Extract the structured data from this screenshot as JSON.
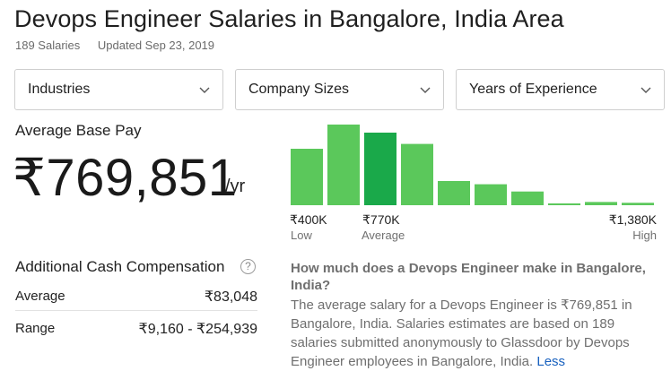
{
  "page": {
    "title": "Devops Engineer Salaries in Bangalore, India Area",
    "salary_count": "189 Salaries",
    "updated": "Updated Sep 23, 2019"
  },
  "filters": [
    {
      "label": "Industries",
      "icon": "chevron-down-icon"
    },
    {
      "label": "Company Sizes",
      "icon": "chevron-down-icon"
    },
    {
      "label": "Years of Experience",
      "icon": "chevron-down-icon"
    }
  ],
  "base_pay": {
    "label": "Average Base Pay",
    "value": "₹769,851",
    "unit": "/yr"
  },
  "histogram": {
    "colors": {
      "bar": "#5bc85b",
      "highlight": "#1aa94a"
    },
    "relative_heights": [
      0.7,
      1.0,
      0.9,
      0.76,
      0.3,
      0.26,
      0.17,
      0.02,
      0.04,
      0.03
    ],
    "highlight_index": 2,
    "low": {
      "value": "₹400K",
      "label": "Low"
    },
    "average": {
      "value": "₹770K",
      "label": "Average"
    },
    "high": {
      "value": "₹1,380K",
      "label": "High"
    }
  },
  "additional_cash": {
    "title": "Additional Cash Compensation",
    "help_icon": "question-circle-icon",
    "help_glyph": "?",
    "average_label": "Average",
    "average_value": "₹83,048",
    "range_label": "Range",
    "range_value": "₹9,160 - ₹254,939"
  },
  "faq": {
    "question": "How much does a Devops Engineer make in Bangalore, India?",
    "answer": "The average salary for a Devops Engineer is ₹769,851 in Bangalore, India. Salaries estimates are based on 189 salaries submitted anonymously to Glassdoor by Devops Engineer employees in Bangalore, India.",
    "less_link": "Less"
  }
}
